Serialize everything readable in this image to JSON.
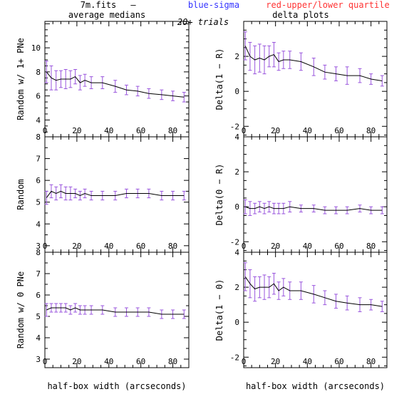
{
  "header": {
    "file": "7m.fits",
    "dash": "—",
    "blue_label": "blue-sigma",
    "red_label": "red-upper/lower quartile",
    "trials": "20+ trials",
    "left_title": "average medians",
    "right_title": "delta plots",
    "colors": {
      "blue": "#3333ff",
      "red": "#ff3333",
      "line": "#000000",
      "bar": "#9955dd"
    }
  },
  "chart_data": [
    {
      "type": "line",
      "ylabel": "Random w/ 1+ PNe",
      "xlabel": "",
      "xlim": [
        0,
        90
      ],
      "ylim": [
        2.6,
        12.2
      ],
      "xticks": [
        0,
        20,
        40,
        60,
        80
      ],
      "yticks": [
        4,
        6,
        8,
        10
      ],
      "x": [
        1,
        4,
        7,
        10,
        13,
        16,
        19,
        22,
        25,
        29,
        36,
        44,
        51,
        58,
        65,
        73,
        80,
        87
      ],
      "y": [
        8.0,
        7.5,
        7.3,
        7.4,
        7.4,
        7.4,
        7.6,
        7.1,
        7.3,
        7.1,
        7.1,
        6.8,
        6.5,
        6.4,
        6.2,
        6.1,
        6.0,
        5.9
      ],
      "err": [
        0.9,
        1.0,
        0.8,
        0.7,
        0.8,
        0.7,
        0.6,
        0.6,
        0.5,
        0.5,
        0.5,
        0.5,
        0.4,
        0.4,
        0.4,
        0.4,
        0.4,
        0.4
      ]
    },
    {
      "type": "line",
      "ylabel": "Delta(1 − R)",
      "xlabel": "",
      "xlim": [
        0,
        90
      ],
      "ylim": [
        -2.6,
        4.0
      ],
      "xticks": [
        0,
        20,
        40,
        60,
        80
      ],
      "yticks": [
        -2,
        0,
        2
      ],
      "x": [
        1,
        4,
        7,
        10,
        13,
        16,
        19,
        22,
        25,
        29,
        36,
        44,
        51,
        58,
        65,
        73,
        80,
        87
      ],
      "y": [
        2.6,
        2.0,
        1.8,
        1.9,
        1.8,
        2.0,
        2.1,
        1.7,
        1.8,
        1.8,
        1.7,
        1.4,
        1.1,
        1.0,
        0.9,
        0.9,
        0.7,
        0.6
      ],
      "err": [
        0.8,
        0.8,
        0.8,
        0.8,
        0.8,
        0.6,
        0.7,
        0.5,
        0.5,
        0.5,
        0.5,
        0.5,
        0.4,
        0.4,
        0.5,
        0.4,
        0.3,
        0.3
      ]
    },
    {
      "type": "line",
      "ylabel": "Random",
      "xlabel": "",
      "xlim": [
        0,
        90
      ],
      "ylim": [
        2.7,
        8.0
      ],
      "xticks": [
        0,
        20,
        40,
        60,
        80
      ],
      "yticks": [
        3,
        4,
        5,
        6,
        7,
        8
      ],
      "x": [
        1,
        4,
        7,
        10,
        13,
        16,
        19,
        22,
        25,
        29,
        36,
        44,
        51,
        58,
        65,
        73,
        80,
        87
      ],
      "y": [
        5.2,
        5.5,
        5.4,
        5.5,
        5.4,
        5.4,
        5.4,
        5.3,
        5.4,
        5.3,
        5.3,
        5.3,
        5.4,
        5.4,
        5.4,
        5.3,
        5.3,
        5.3
      ],
      "err": [
        0.3,
        0.3,
        0.3,
        0.3,
        0.3,
        0.3,
        0.2,
        0.2,
        0.2,
        0.2,
        0.2,
        0.2,
        0.2,
        0.2,
        0.2,
        0.2,
        0.2,
        0.2
      ]
    },
    {
      "type": "line",
      "ylabel": "Delta(0 − R)",
      "xlabel": "",
      "xlim": [
        0,
        90
      ],
      "ylim": [
        -2.6,
        4.0
      ],
      "xticks": [
        0,
        20,
        40,
        60,
        80
      ],
      "yticks": [
        -2,
        0,
        2,
        4
      ],
      "x": [
        1,
        4,
        7,
        10,
        13,
        16,
        19,
        22,
        25,
        29,
        36,
        44,
        51,
        58,
        65,
        73,
        80,
        87
      ],
      "y": [
        0.0,
        -0.1,
        -0.1,
        0.0,
        -0.1,
        0.0,
        -0.1,
        -0.1,
        -0.1,
        0.0,
        -0.1,
        -0.1,
        -0.2,
        -0.2,
        -0.2,
        -0.1,
        -0.2,
        -0.2
      ],
      "err": [
        0.4,
        0.4,
        0.3,
        0.3,
        0.3,
        0.3,
        0.3,
        0.3,
        0.3,
        0.3,
        0.2,
        0.2,
        0.2,
        0.2,
        0.2,
        0.2,
        0.2,
        0.2
      ]
    },
    {
      "type": "line",
      "ylabel": "Random w/ 0 PNe",
      "xlabel": "half-box width (arcseconds)",
      "xlim": [
        0,
        90
      ],
      "ylim": [
        2.6,
        8.0
      ],
      "xticks": [
        0,
        20,
        40,
        60,
        80
      ],
      "yticks": [
        3,
        4,
        5,
        6,
        7,
        8
      ],
      "x": [
        1,
        4,
        7,
        10,
        13,
        16,
        19,
        22,
        25,
        29,
        36,
        44,
        51,
        58,
        65,
        73,
        80,
        87
      ],
      "y": [
        5.3,
        5.4,
        5.4,
        5.4,
        5.4,
        5.3,
        5.4,
        5.3,
        5.3,
        5.3,
        5.3,
        5.2,
        5.2,
        5.2,
        5.2,
        5.1,
        5.1,
        5.1
      ],
      "err": [
        0.3,
        0.2,
        0.2,
        0.2,
        0.2,
        0.2,
        0.2,
        0.2,
        0.2,
        0.2,
        0.2,
        0.2,
        0.2,
        0.2,
        0.2,
        0.2,
        0.2,
        0.2
      ]
    },
    {
      "type": "line",
      "ylabel": "Delta(1 − 0)",
      "xlabel": "half-box width (arcseconds)",
      "xlim": [
        0,
        90
      ],
      "ylim": [
        -2.6,
        4.0
      ],
      "xticks": [
        0,
        20,
        40,
        60,
        80
      ],
      "yticks": [
        -2,
        0,
        2,
        4
      ],
      "x": [
        1,
        4,
        7,
        10,
        13,
        16,
        19,
        22,
        25,
        29,
        36,
        44,
        51,
        58,
        65,
        73,
        80,
        87
      ],
      "y": [
        2.6,
        2.2,
        1.9,
        2.0,
        2.0,
        2.0,
        2.2,
        1.8,
        2.0,
        1.8,
        1.8,
        1.6,
        1.4,
        1.2,
        1.1,
        1.0,
        1.0,
        0.9
      ],
      "err": [
        0.8,
        0.8,
        0.7,
        0.6,
        0.7,
        0.6,
        0.6,
        0.5,
        0.5,
        0.5,
        0.5,
        0.5,
        0.4,
        0.4,
        0.4,
        0.4,
        0.3,
        0.3
      ]
    }
  ]
}
